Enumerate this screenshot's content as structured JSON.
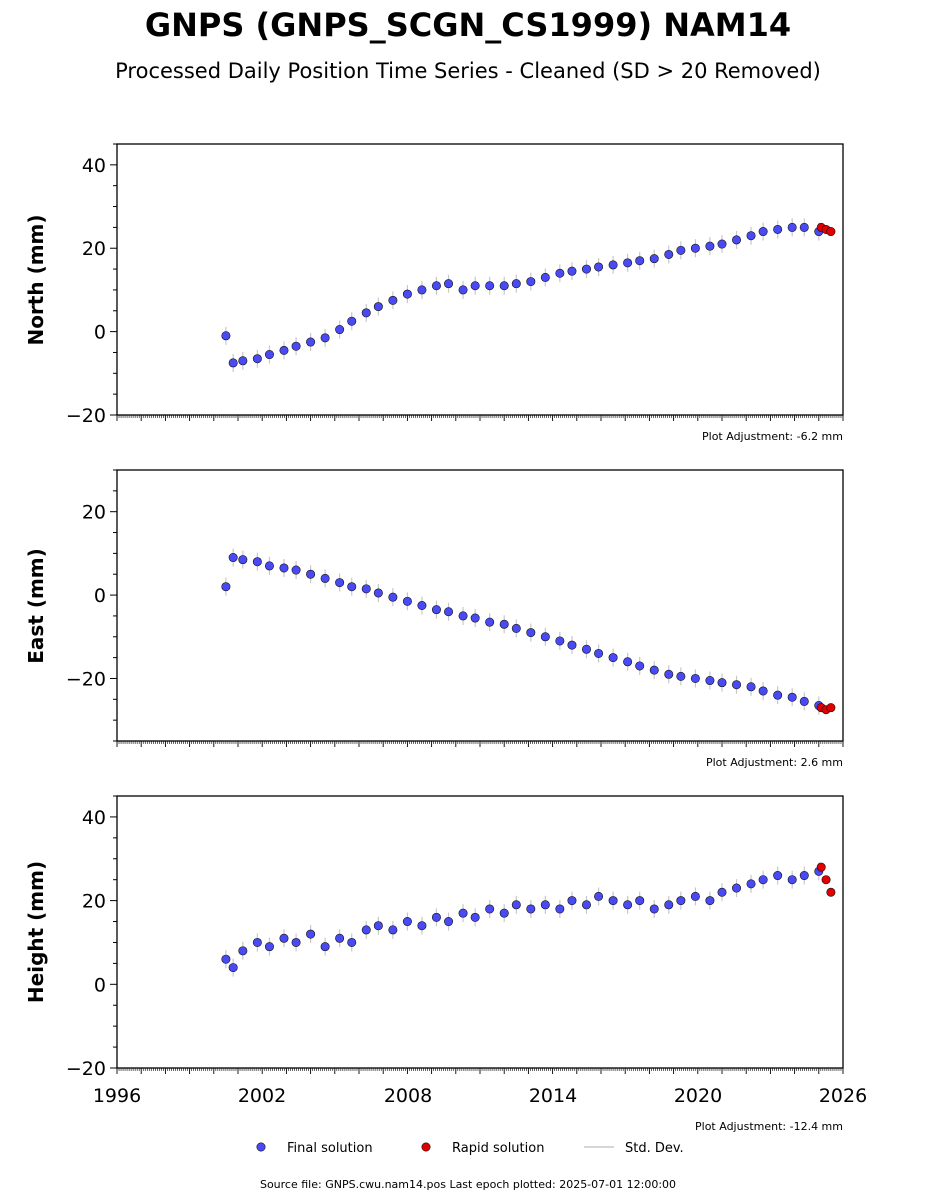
{
  "title": "GNPS (GNPS_SCGN_CS1999) NAM14",
  "subtitle": "Processed Daily Position Time Series - Cleaned (SD > 20 Removed)",
  "colors": {
    "final": "#4a4af5",
    "rapid": "#e00000",
    "stddev": "#c8c8c8",
    "frame": "#000000"
  },
  "legend": {
    "final_label": "Final solution",
    "rapid_label": "Rapid solution",
    "std_label": "Std. Dev."
  },
  "footer": {
    "source": "Source file: GNPS.cwu.nam14.pos  Last epoch plotted: 2025-07-01 12:00:00"
  },
  "x_tick_labels": [
    "1996",
    "2002",
    "2008",
    "2014",
    "2020",
    "2026"
  ],
  "chart_data": [
    {
      "type": "scatter",
      "ylabel": "North (mm)",
      "adjustment": "Plot Adjustment: -6.2 mm",
      "xlim": [
        1996,
        2026
      ],
      "ylim": [
        -20,
        45
      ],
      "y_ticks": [
        40,
        20,
        0,
        -20
      ],
      "y_tick_labels": [
        "40",
        "20",
        "0",
        "−20"
      ],
      "series": [
        {
          "name": "Final solution",
          "x": [
            2000.5,
            2000.8,
            2001.2,
            2001.8,
            2002.3,
            2002.9,
            2003.4,
            2004.0,
            2004.6,
            2005.2,
            2005.7,
            2006.3,
            2006.8,
            2007.4,
            2008.0,
            2008.6,
            2009.2,
            2009.7,
            2010.3,
            2010.8,
            2011.4,
            2012.0,
            2012.5,
            2013.1,
            2013.7,
            2014.3,
            2014.8,
            2015.4,
            2015.9,
            2016.5,
            2017.1,
            2017.6,
            2018.2,
            2018.8,
            2019.3,
            2019.9,
            2020.5,
            2021.0,
            2021.6,
            2022.2,
            2022.7,
            2023.3,
            2023.9,
            2024.4,
            2025.0
          ],
          "y": [
            -1.0,
            -7.5,
            -7.0,
            -6.5,
            -5.5,
            -4.5,
            -3.5,
            -2.5,
            -1.5,
            0.5,
            2.5,
            4.5,
            6.0,
            7.5,
            9.0,
            10.0,
            11.0,
            11.5,
            10.0,
            11.0,
            11.0,
            11.0,
            11.5,
            12.0,
            13.0,
            14.0,
            14.5,
            15.0,
            15.5,
            16.0,
            16.5,
            17.0,
            17.5,
            18.5,
            19.5,
            20.0,
            20.5,
            21.0,
            22.0,
            23.0,
            24.0,
            24.5,
            25.0,
            25.0,
            24.0
          ]
        },
        {
          "name": "Rapid solution",
          "x": [
            2025.1,
            2025.3,
            2025.5
          ],
          "y": [
            25.0,
            24.5,
            24.0
          ]
        }
      ]
    },
    {
      "type": "scatter",
      "ylabel": "East (mm)",
      "adjustment": "Plot Adjustment: 2.6 mm",
      "xlim": [
        1996,
        2026
      ],
      "ylim": [
        -35,
        30
      ],
      "y_ticks": [
        20,
        0,
        -20
      ],
      "y_tick_labels": [
        "20",
        "0",
        "−20"
      ],
      "series": [
        {
          "name": "Final solution",
          "x": [
            2000.5,
            2000.8,
            2001.2,
            2001.8,
            2002.3,
            2002.9,
            2003.4,
            2004.0,
            2004.6,
            2005.2,
            2005.7,
            2006.3,
            2006.8,
            2007.4,
            2008.0,
            2008.6,
            2009.2,
            2009.7,
            2010.3,
            2010.8,
            2011.4,
            2012.0,
            2012.5,
            2013.1,
            2013.7,
            2014.3,
            2014.8,
            2015.4,
            2015.9,
            2016.5,
            2017.1,
            2017.6,
            2018.2,
            2018.8,
            2019.3,
            2019.9,
            2020.5,
            2021.0,
            2021.6,
            2022.2,
            2022.7,
            2023.3,
            2023.9,
            2024.4,
            2025.0
          ],
          "y": [
            2.0,
            9.0,
            8.5,
            8.0,
            7.0,
            6.5,
            6.0,
            5.0,
            4.0,
            3.0,
            2.0,
            1.5,
            0.5,
            -0.5,
            -1.5,
            -2.5,
            -3.5,
            -4.0,
            -5.0,
            -5.5,
            -6.5,
            -7.0,
            -8.0,
            -9.0,
            -10.0,
            -11.0,
            -12.0,
            -13.0,
            -14.0,
            -15.0,
            -16.0,
            -17.0,
            -18.0,
            -19.0,
            -19.5,
            -20.0,
            -20.5,
            -21.0,
            -21.5,
            -22.0,
            -23.0,
            -24.0,
            -24.5,
            -25.5,
            -26.5
          ]
        },
        {
          "name": "Rapid solution",
          "x": [
            2025.1,
            2025.3,
            2025.5
          ],
          "y": [
            -27.0,
            -27.5,
            -27.0
          ]
        }
      ]
    },
    {
      "type": "scatter",
      "ylabel": "Height (mm)",
      "adjustment": "Plot Adjustment: -12.4 mm",
      "xlim": [
        1996,
        2026
      ],
      "ylim": [
        -20,
        45
      ],
      "y_ticks": [
        40,
        20,
        0,
        -20
      ],
      "y_tick_labels": [
        "40",
        "20",
        "0",
        "−20"
      ],
      "series": [
        {
          "name": "Final solution",
          "x": [
            2000.5,
            2000.8,
            2001.2,
            2001.8,
            2002.3,
            2002.9,
            2003.4,
            2004.0,
            2004.6,
            2005.2,
            2005.7,
            2006.3,
            2006.8,
            2007.4,
            2008.0,
            2008.6,
            2009.2,
            2009.7,
            2010.3,
            2010.8,
            2011.4,
            2012.0,
            2012.5,
            2013.1,
            2013.7,
            2014.3,
            2014.8,
            2015.4,
            2015.9,
            2016.5,
            2017.1,
            2017.6,
            2018.2,
            2018.8,
            2019.3,
            2019.9,
            2020.5,
            2021.0,
            2021.6,
            2022.2,
            2022.7,
            2023.3,
            2023.9,
            2024.4,
            2025.0
          ],
          "y": [
            6.0,
            4.0,
            8.0,
            10.0,
            9.0,
            11.0,
            10.0,
            12.0,
            9.0,
            11.0,
            10.0,
            13.0,
            14.0,
            13.0,
            15.0,
            14.0,
            16.0,
            15.0,
            17.0,
            16.0,
            18.0,
            17.0,
            19.0,
            18.0,
            19.0,
            18.0,
            20.0,
            19.0,
            21.0,
            20.0,
            19.0,
            20.0,
            18.0,
            19.0,
            20.0,
            21.0,
            20.0,
            22.0,
            23.0,
            24.0,
            25.0,
            26.0,
            25.0,
            26.0,
            27.0
          ]
        },
        {
          "name": "Rapid solution",
          "x": [
            2025.1,
            2025.3,
            2025.5
          ],
          "y": [
            28.0,
            25.0,
            22.0
          ]
        }
      ]
    }
  ]
}
